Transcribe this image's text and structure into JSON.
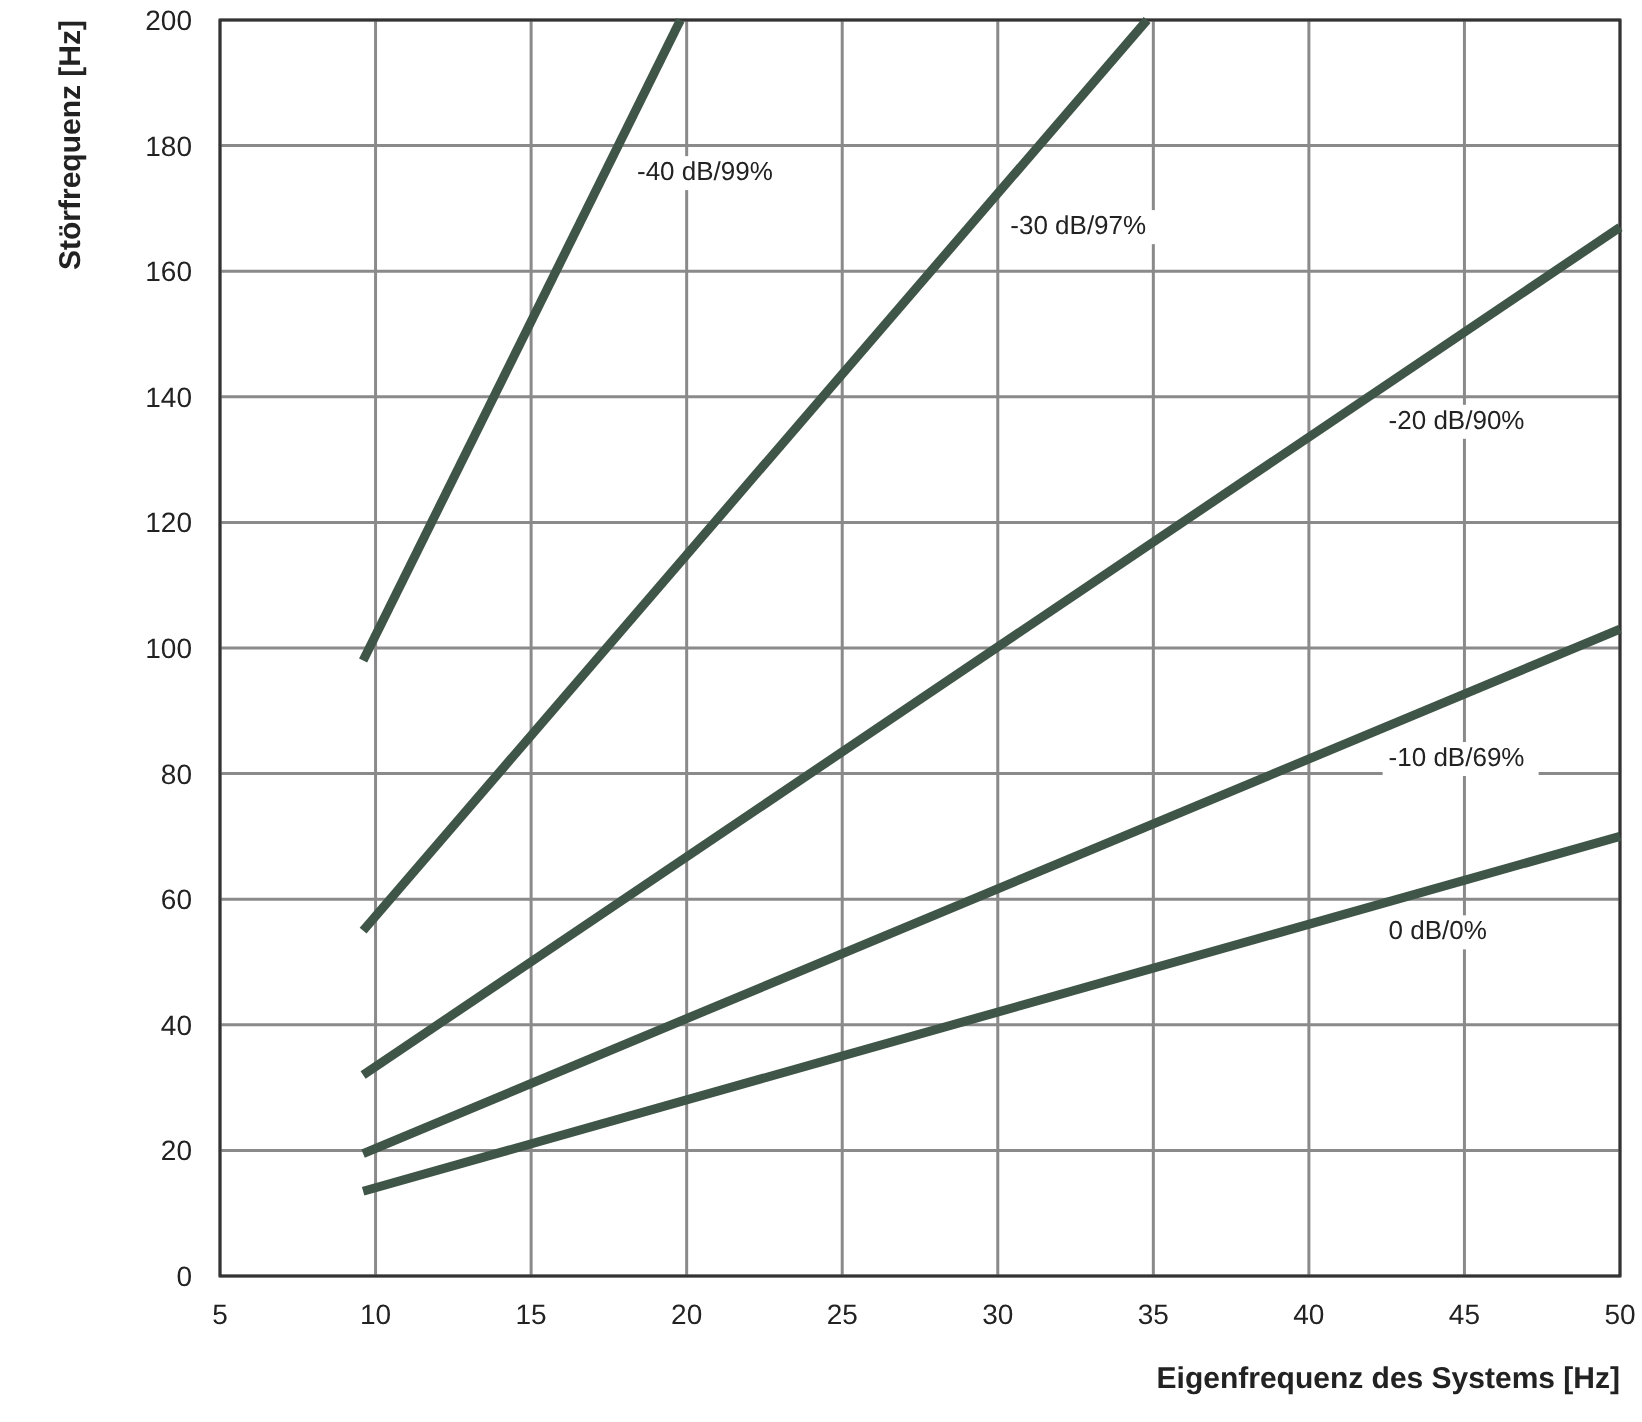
{
  "chart_data": {
    "type": "line",
    "xlabel": "Eigenfrequenz des Systems [Hz]",
    "ylabel": "Störfrequenz [Hz]",
    "xlim": [
      5,
      50
    ],
    "xticks": [
      5,
      10,
      15,
      20,
      25,
      30,
      35,
      40,
      45,
      50
    ],
    "ylim": [
      0,
      200
    ],
    "yticks": [
      0,
      20,
      40,
      60,
      80,
      100,
      120,
      140,
      160,
      180,
      200
    ],
    "grid": true,
    "legend": false,
    "marker": "none",
    "line_style": "solid",
    "series": [
      {
        "name": "-40 dB/99%",
        "color": "#3f5547",
        "x": [
          9.6,
          19.8
        ],
        "values": [
          98,
          200
        ]
      },
      {
        "name": "-30 dB/97%",
        "color": "#3f5547",
        "x": [
          9.6,
          34.8
        ],
        "values": [
          55,
          200
        ]
      },
      {
        "name": "-20 dB/90%",
        "color": "#3f5547",
        "x": [
          9.6,
          50
        ],
        "values": [
          32,
          167
        ]
      },
      {
        "name": "-10 dB/69%",
        "color": "#3f5547",
        "x": [
          9.6,
          50
        ],
        "values": [
          19.5,
          103
        ]
      },
      {
        "name": "0 dB/0%",
        "color": "#3f5547",
        "x": [
          9.6,
          50
        ],
        "values": [
          13.5,
          70
        ]
      }
    ]
  }
}
